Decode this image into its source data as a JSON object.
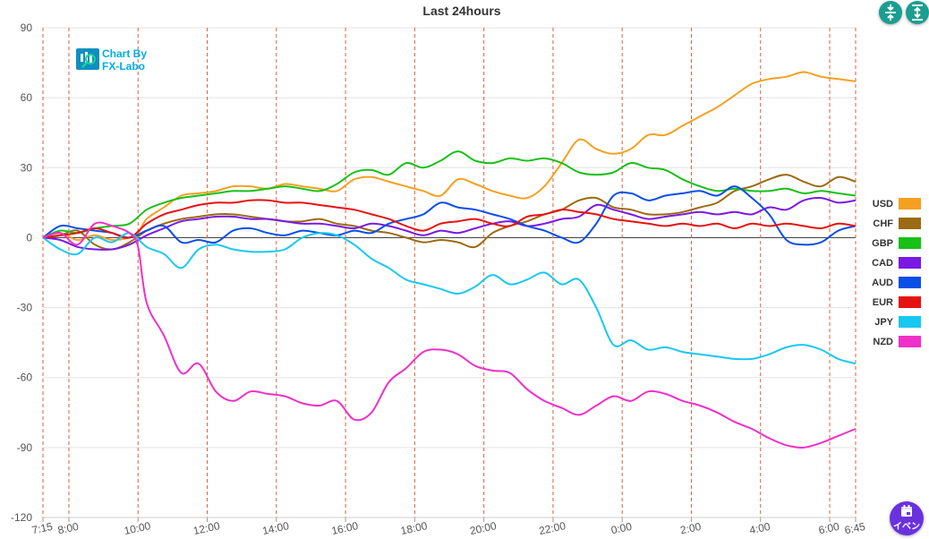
{
  "logo": {
    "line1": "Chart By",
    "line2": "FX-Labo"
  },
  "buttons": {
    "compress_icon": "compress-vertical-icon",
    "expand_icon": "expand-vertical-icon",
    "event_label": "イベン",
    "event_icon": "calendar-icon"
  },
  "chart_data": {
    "type": "line",
    "title": "Last 24hours",
    "ylim": [
      -120,
      90
    ],
    "yticks": [
      90,
      60,
      30,
      0,
      -30,
      -60,
      -90,
      -120
    ],
    "xlim": [
      0,
      23.5
    ],
    "xticks": [
      {
        "t": 0,
        "label": "7:15"
      },
      {
        "t": 0.75,
        "label": "8:00"
      },
      {
        "t": 2.75,
        "label": "10:00"
      },
      {
        "t": 4.75,
        "label": "12:00"
      },
      {
        "t": 6.75,
        "label": "14:00"
      },
      {
        "t": 8.75,
        "label": "16:00"
      },
      {
        "t": 10.75,
        "label": "18:00"
      },
      {
        "t": 12.75,
        "label": "20:00"
      },
      {
        "t": 14.75,
        "label": "22:00"
      },
      {
        "t": 16.75,
        "label": "0:00"
      },
      {
        "t": 18.75,
        "label": "2:00"
      },
      {
        "t": 20.75,
        "label": "4:00"
      },
      {
        "t": 22.75,
        "label": "6:00"
      },
      {
        "t": 23.5,
        "label": "6:45"
      }
    ],
    "x_unit": "hours since 7:15",
    "grid": "vertical dashed lines at hour marks, horizontal gridlines",
    "legend_position": "right",
    "series": [
      {
        "name": "USD",
        "color": "#f5a020",
        "x": [
          0,
          0.5,
          1,
          1.5,
          2,
          2.5,
          2.75,
          3,
          3.5,
          4,
          4.5,
          5,
          5.5,
          6,
          6.5,
          7,
          7.5,
          8,
          8.5,
          9,
          9.5,
          10,
          10.5,
          11,
          11.5,
          12,
          12.5,
          13,
          13.5,
          14,
          14.5,
          15,
          15.5,
          16,
          16.5,
          17,
          17.5,
          18,
          18.5,
          19,
          19.5,
          20,
          20.5,
          21,
          21.5,
          22,
          22.5,
          23,
          23.5
        ],
        "y": [
          0,
          2,
          -1,
          1,
          -1,
          0,
          2,
          8,
          13,
          18,
          19,
          20,
          22,
          22,
          21,
          23,
          22,
          21,
          20,
          25,
          26,
          24,
          22,
          20,
          18,
          25,
          23,
          20,
          18,
          17,
          22,
          32,
          42,
          38,
          36,
          38,
          44,
          44,
          48,
          52,
          56,
          61,
          66,
          68,
          69,
          71,
          69,
          68,
          67
        ]
      },
      {
        "name": "CHF",
        "color": "#9c6a10",
        "x": [
          0,
          0.5,
          1,
          1.5,
          2,
          2.5,
          3,
          3.5,
          4,
          4.5,
          5,
          5.5,
          6,
          6.5,
          7,
          7.5,
          8,
          8.5,
          9,
          9.5,
          10,
          10.5,
          11,
          11.5,
          12,
          12.5,
          13,
          13.5,
          14,
          14.5,
          15,
          15.5,
          16,
          16.5,
          17,
          17.5,
          18,
          18.5,
          19,
          19.5,
          20,
          20.5,
          21,
          21.5,
          22,
          22.5,
          23,
          23.5
        ],
        "y": [
          0,
          1,
          3,
          -3,
          -5,
          -2,
          3,
          6,
          8,
          9,
          10,
          10,
          9,
          8,
          7,
          7,
          8,
          6,
          5,
          3,
          2,
          0,
          -2,
          -1,
          -2,
          -4,
          2,
          5,
          7,
          10,
          12,
          16,
          17,
          13,
          12,
          10,
          10,
          11,
          13,
          15,
          20,
          22,
          25,
          27,
          24,
          22,
          26,
          24
        ]
      },
      {
        "name": "GBP",
        "color": "#18c018",
        "x": [
          0,
          0.5,
          1,
          1.5,
          2,
          2.5,
          3,
          3.5,
          4,
          4.5,
          5,
          5.5,
          6,
          6.5,
          7,
          7.5,
          8,
          8.5,
          9,
          9.5,
          10,
          10.5,
          11,
          11.5,
          12,
          12.5,
          13,
          13.5,
          14,
          14.5,
          15,
          15.5,
          16,
          16.5,
          17,
          17.5,
          18,
          18.5,
          19,
          19.5,
          20,
          20.5,
          21,
          21.5,
          22,
          22.5,
          23,
          23.5
        ],
        "y": [
          0,
          3,
          2,
          4,
          5,
          6,
          12,
          15,
          17,
          18,
          19,
          20,
          20,
          21,
          22,
          21,
          20,
          23,
          28,
          29,
          27,
          32,
          30,
          33,
          37,
          33,
          32,
          34,
          33,
          34,
          32,
          28,
          27,
          28,
          32,
          30,
          29,
          25,
          22,
          20,
          21,
          20,
          20,
          21,
          19,
          20,
          19,
          18
        ]
      },
      {
        "name": "CAD",
        "color": "#7a18e6",
        "x": [
          0,
          0.5,
          1,
          1.5,
          2,
          2.5,
          3,
          3.5,
          4,
          4.5,
          5,
          5.5,
          6,
          6.5,
          7,
          7.5,
          8,
          8.5,
          9,
          9.5,
          10,
          10.5,
          11,
          11.5,
          12,
          12.5,
          13,
          13.5,
          14,
          14.5,
          15,
          15.5,
          16,
          16.5,
          17,
          17.5,
          18,
          18.5,
          19,
          19.5,
          20,
          20.5,
          21,
          21.5,
          22,
          22.5,
          23,
          23.5
        ],
        "y": [
          0,
          -1,
          -4,
          -5,
          -5,
          -3,
          1,
          4,
          7,
          8,
          9,
          9,
          8,
          8,
          7,
          6,
          6,
          5,
          4,
          6,
          5,
          3,
          1,
          3,
          2,
          4,
          6,
          7,
          5,
          6,
          8,
          9,
          14,
          12,
          10,
          8,
          9,
          10,
          11,
          10,
          11,
          10,
          13,
          12,
          16,
          17,
          15,
          16
        ]
      },
      {
        "name": "AUD",
        "color": "#0a4ee8",
        "x": [
          0,
          0.5,
          1,
          1.5,
          2,
          2.5,
          3,
          3.5,
          4,
          4.5,
          5,
          5.5,
          6,
          6.5,
          7,
          7.5,
          8,
          8.5,
          9,
          9.5,
          10,
          10.5,
          11,
          11.5,
          12,
          12.5,
          13,
          13.5,
          14,
          14.5,
          15,
          15.5,
          16,
          16.5,
          17,
          17.5,
          18,
          18.5,
          19,
          19.5,
          20,
          20.5,
          21,
          21.5,
          22,
          22.5,
          23,
          23.5
        ],
        "y": [
          0,
          5,
          4,
          3,
          2,
          0,
          3,
          5,
          -2,
          -1,
          -2,
          3,
          4,
          2,
          1,
          3,
          2,
          1,
          3,
          2,
          6,
          8,
          10,
          15,
          13,
          12,
          10,
          8,
          5,
          3,
          0,
          -2,
          6,
          18,
          19,
          16,
          18,
          19,
          20,
          18,
          22,
          17,
          10,
          -1,
          -3,
          -2,
          3,
          5
        ]
      },
      {
        "name": "EUR",
        "color": "#e61212",
        "x": [
          0,
          0.5,
          1,
          1.5,
          2,
          2.5,
          3,
          3.5,
          4,
          4.5,
          5,
          5.5,
          6,
          6.5,
          7,
          7.5,
          8,
          8.5,
          9,
          9.5,
          10,
          10.5,
          11,
          11.5,
          12,
          12.5,
          13,
          13.5,
          14,
          14.5,
          15,
          15.5,
          16,
          16.5,
          17,
          17.5,
          18,
          18.5,
          19,
          19.5,
          20,
          20.5,
          21,
          21.5,
          22,
          22.5,
          23,
          23.5
        ],
        "y": [
          0,
          1,
          2,
          4,
          2,
          0,
          6,
          10,
          12,
          14,
          15,
          15,
          16,
          16,
          15,
          15,
          14,
          13,
          12,
          10,
          8,
          5,
          3,
          6,
          7,
          8,
          6,
          5,
          9,
          10,
          12,
          11,
          10,
          8,
          7,
          6,
          5,
          6,
          5,
          6,
          4,
          6,
          5,
          6,
          5,
          4,
          6,
          5
        ]
      },
      {
        "name": "JPY",
        "color": "#18c8f0",
        "x": [
          0,
          0.5,
          1,
          1.5,
          2,
          2.5,
          3,
          3.5,
          4,
          4.5,
          5,
          5.5,
          6,
          6.5,
          7,
          7.5,
          8,
          8.5,
          9,
          9.5,
          10,
          10.5,
          11,
          11.5,
          12,
          12.5,
          13,
          13.5,
          14,
          14.5,
          15,
          15.5,
          16,
          16.5,
          17,
          17.5,
          18,
          18.5,
          19,
          19.5,
          20,
          20.5,
          21,
          21.5,
          22,
          22.5,
          23,
          23.5
        ],
        "y": [
          0,
          -5,
          -7,
          0,
          -2,
          2,
          -4,
          -7,
          -13,
          -5,
          -3,
          -5,
          -6,
          -6,
          -5,
          0,
          2,
          1,
          -3,
          -9,
          -13,
          -18,
          -20,
          -22,
          -24,
          -21,
          -16,
          -20,
          -18,
          -15,
          -20,
          -18,
          -30,
          -46,
          -44,
          -48,
          -47,
          -49,
          -50,
          -51,
          -52,
          -52,
          -50,
          -47,
          -46,
          -48,
          -52,
          -54
        ]
      },
      {
        "name": "NZD",
        "color": "#f030c8",
        "x": [
          0,
          0.5,
          1,
          1.5,
          2,
          2.5,
          2.75,
          3,
          3.5,
          4,
          4.5,
          5,
          5.5,
          6,
          6.5,
          7,
          7.5,
          8,
          8.5,
          9,
          9.5,
          10,
          10.5,
          11,
          11.5,
          12,
          12.5,
          13,
          13.5,
          14,
          14.5,
          15,
          15.5,
          16,
          16.5,
          17,
          17.5,
          18,
          18.5,
          19,
          19.5,
          20,
          20.5,
          21,
          21.5,
          22,
          22.5,
          23,
          23.5
        ],
        "y": [
          0,
          2,
          -3,
          6,
          5,
          2,
          -4,
          -28,
          -42,
          -58,
          -54,
          -66,
          -70,
          -66,
          -67,
          -68,
          -71,
          -72,
          -70,
          -78,
          -75,
          -62,
          -56,
          -49,
          -48,
          -50,
          -55,
          -57,
          -58,
          -65,
          -70,
          -73,
          -76,
          -72,
          -68,
          -70,
          -66,
          -67,
          -70,
          -72,
          -75,
          -79,
          -82,
          -86,
          -89,
          -90,
          -88,
          -85,
          -82
        ]
      }
    ]
  }
}
